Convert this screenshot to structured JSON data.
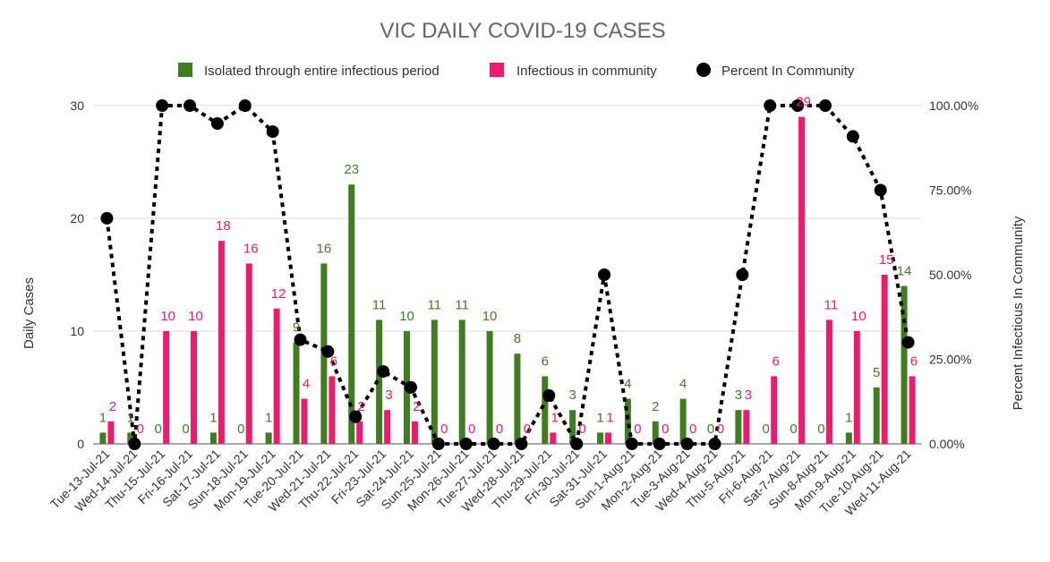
{
  "chart_data": {
    "type": "bar",
    "title": "VIC DAILY COVID-19 CASES",
    "ylabel": "Daily Cases",
    "y2label": "Percent Infectious In Community",
    "ylim": [
      0,
      30
    ],
    "y2lim": [
      0,
      1
    ],
    "yticks": [
      "0",
      "10",
      "20",
      "30"
    ],
    "y2ticks": [
      "0.00%",
      "25.00%",
      "50.00%",
      "75.00%",
      "100.00%"
    ],
    "grid": true,
    "legend_position": "top",
    "categories": [
      "Tue-13-Jul-21",
      "Wed-14-Jul-21",
      "Thu-15-Jul-21",
      "Fri-16-Jul-21",
      "Sat-17-Jul-21",
      "Sun-18-Jul-21",
      "Mon-19-Jul-21",
      "Tue-20-Jul-21",
      "Wed-21-Jul-21",
      "Thu-22-Jul-21",
      "Fri-23-Jul-21",
      "Sat-24-Jul-21",
      "Sun-25-Jul-21",
      "Mon-26-Jul-21",
      "Tue-27-Jul-21",
      "Wed-28-Jul-21",
      "Thu-29-Jul-21",
      "Fri-30-Jul-21",
      "Sat-31-Jul-21",
      "Sun-1-Aug-21",
      "Mon-2-Aug-21",
      "Tue-3-Aug-21",
      "Wed-4-Aug-21",
      "Thu-5-Aug-21",
      "Fri-6-Aug-21",
      "Sat-7-Aug-21",
      "Sun-8-Aug-21",
      "Mon-9-Aug-21",
      "Tue-10-Aug-21",
      "Wed-11-Aug-21"
    ],
    "series": [
      {
        "name": "Isolated through entire infectious period",
        "color": "#3f7d20",
        "kind": "bar",
        "values": [
          1,
          1,
          0,
          0,
          1,
          0,
          1,
          9,
          16,
          23,
          11,
          10,
          11,
          11,
          10,
          8,
          6,
          3,
          1,
          4,
          2,
          4,
          0,
          3,
          0,
          0,
          0,
          1,
          5,
          14
        ]
      },
      {
        "name": "Infectious in community",
        "color": "#f0196e",
        "kind": "bar",
        "values": [
          2,
          0,
          10,
          10,
          18,
          16,
          12,
          4,
          6,
          2,
          3,
          2,
          0,
          0,
          0,
          0,
          1,
          0,
          1,
          0,
          0,
          0,
          0,
          3,
          6,
          29,
          11,
          10,
          15,
          6
        ]
      },
      {
        "name": "Percent In Community",
        "color": "#000000",
        "kind": "line",
        "axis": "right",
        "values": [
          0.667,
          0,
          1,
          1,
          0.947,
          1,
          0.923,
          0.308,
          0.273,
          0.08,
          0.214,
          0.167,
          0,
          0,
          0,
          0,
          0.143,
          0,
          0.5,
          0,
          0,
          0,
          0,
          0.5,
          1,
          1,
          1,
          0.909,
          0.75,
          0.3
        ]
      }
    ]
  }
}
